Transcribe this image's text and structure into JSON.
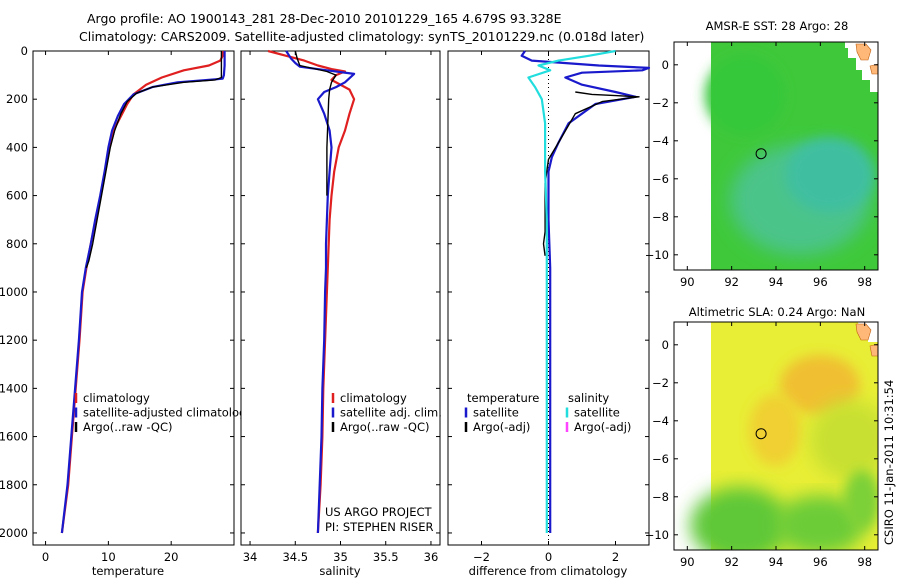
{
  "header": {
    "line1": "Argo profile: AO 1900143_281 28-Dec-2010 20101229_165 4.679S 93.328E",
    "line2": "Climatology: CARS2009. Satellite-adjusted climatology: synTS_20101229.nc (0.018d later)"
  },
  "side_label": "CSIRO 11-Jan-2011 10:31:54",
  "chart_data": [
    {
      "id": "temperature-panel",
      "type": "line",
      "xlabel": "temperature",
      "ylabel": "",
      "xlim": [
        -2,
        30
      ],
      "ylim": [
        2050,
        0
      ],
      "x_ticks": [
        0,
        10,
        20
      ],
      "y_ticks": [
        0,
        200,
        400,
        600,
        800,
        1000,
        1200,
        1400,
        1600,
        1800,
        2000
      ],
      "legend": [
        "climatology",
        "satellite-adjusted climatology",
        "Argo(..raw -QC)"
      ],
      "series": [
        {
          "name": "climatology",
          "color": "#e02020",
          "points": [
            [
              28.3,
              0
            ],
            [
              28.2,
              20
            ],
            [
              27.8,
              40
            ],
            [
              26,
              60
            ],
            [
              22,
              80
            ],
            [
              18.5,
              110
            ],
            [
              16,
              140
            ],
            [
              14,
              180
            ],
            [
              13,
              220
            ],
            [
              12.2,
              260
            ],
            [
              11,
              320
            ],
            [
              10.2,
              400
            ],
            [
              9.5,
              500
            ],
            [
              8.8,
              600
            ],
            [
              8,
              700
            ],
            [
              7.2,
              800
            ],
            [
              6.5,
              900
            ],
            [
              5.9,
              1000
            ],
            [
              5.4,
              1200
            ],
            [
              4.8,
              1400
            ],
            [
              4.2,
              1600
            ],
            [
              3.6,
              1800
            ],
            [
              2.6,
              2000
            ]
          ]
        },
        {
          "name": "satellite-adjusted climatology",
          "color": "#1a1acc",
          "points": [
            [
              28.5,
              0
            ],
            [
              28.5,
              60
            ],
            [
              28.4,
              100
            ],
            [
              28.2,
              115
            ],
            [
              26,
              120
            ],
            [
              21,
              130
            ],
            [
              17,
              150
            ],
            [
              14,
              180
            ],
            [
              12.5,
              220
            ],
            [
              11.5,
              270
            ],
            [
              10.6,
              330
            ],
            [
              10,
              400
            ],
            [
              9.4,
              500
            ],
            [
              8.7,
              600
            ],
            [
              7.9,
              700
            ],
            [
              7.2,
              800
            ],
            [
              6.4,
              900
            ],
            [
              5.8,
              1000
            ],
            [
              5.3,
              1200
            ],
            [
              4.7,
              1400
            ],
            [
              4.1,
              1600
            ],
            [
              3.5,
              1800
            ],
            [
              2.6,
              2000
            ]
          ]
        },
        {
          "name": "Argo(..raw -QC)",
          "color": "#000000",
          "points": [
            [
              28,
              0
            ],
            [
              28,
              110
            ],
            [
              27,
              120
            ],
            [
              22,
              130
            ],
            [
              17,
              150
            ],
            [
              14.5,
              175
            ],
            [
              13,
              210
            ],
            [
              12,
              260
            ],
            [
              11,
              330
            ],
            [
              10.3,
              400
            ],
            [
              9.6,
              500
            ],
            [
              8.9,
              600
            ],
            [
              8.2,
              700
            ],
            [
              7.5,
              800
            ],
            [
              6.9,
              870
            ],
            [
              6.5,
              900
            ]
          ]
        }
      ]
    },
    {
      "id": "salinity-panel",
      "type": "line",
      "xlabel": "salinity",
      "xlim": [
        33.9,
        36.1
      ],
      "ylim": [
        2050,
        0
      ],
      "x_ticks": [
        34,
        34.5,
        35,
        35.5,
        36
      ],
      "legend": [
        "climatology",
        "satellite adj. clim.",
        "Argo(..raw -QC)"
      ],
      "annotation": [
        "US ARGO PROJECT",
        "PI: STEPHEN RISER"
      ],
      "series": [
        {
          "name": "climatology",
          "color": "#e02020",
          "points": [
            [
              34.2,
              0
            ],
            [
              34.4,
              20
            ],
            [
              34.6,
              40
            ],
            [
              34.75,
              60
            ],
            [
              34.9,
              75
            ],
            [
              35.05,
              85
            ],
            [
              34.95,
              100
            ],
            [
              34.9,
              120
            ],
            [
              35.1,
              160
            ],
            [
              35.15,
              200
            ],
            [
              35.1,
              260
            ],
            [
              35.05,
              330
            ],
            [
              34.98,
              400
            ],
            [
              34.93,
              500
            ],
            [
              34.9,
              600
            ],
            [
              34.88,
              700
            ],
            [
              34.87,
              800
            ],
            [
              34.86,
              900
            ],
            [
              34.85,
              1000
            ],
            [
              34.83,
              1200
            ],
            [
              34.81,
              1400
            ],
            [
              34.8,
              1600
            ],
            [
              34.78,
              1800
            ],
            [
              34.75,
              2000
            ]
          ]
        },
        {
          "name": "satellite adj. clim.",
          "color": "#1a1acc",
          "points": [
            [
              34.4,
              0
            ],
            [
              34.45,
              30
            ],
            [
              34.5,
              50
            ],
            [
              34.55,
              65
            ],
            [
              34.85,
              80
            ],
            [
              35.15,
              95
            ],
            [
              35.05,
              130
            ],
            [
              34.95,
              150
            ],
            [
              34.82,
              170
            ],
            [
              34.75,
              200
            ],
            [
              34.82,
              260
            ],
            [
              34.88,
              330
            ],
            [
              34.9,
              400
            ],
            [
              34.88,
              500
            ],
            [
              34.86,
              600
            ],
            [
              34.85,
              700
            ],
            [
              34.84,
              800
            ],
            [
              34.84,
              900
            ],
            [
              34.83,
              1000
            ],
            [
              34.82,
              1200
            ],
            [
              34.8,
              1400
            ],
            [
              34.79,
              1600
            ],
            [
              34.77,
              1800
            ],
            [
              34.75,
              2000
            ]
          ]
        },
        {
          "name": "Argo(..raw -QC)",
          "color": "#000000",
          "points": [
            [
              34.5,
              0
            ],
            [
              34.52,
              30
            ],
            [
              34.55,
              60
            ],
            [
              34.85,
              85
            ],
            [
              34.95,
              100
            ],
            [
              34.9,
              130
            ],
            [
              34.88,
              160
            ],
            [
              34.87,
              200
            ],
            [
              34.86,
              300
            ],
            [
              34.85,
              400
            ],
            [
              34.85,
              600
            ]
          ]
        }
      ]
    },
    {
      "id": "difference-panel",
      "type": "line",
      "xlabel": "difference from climatology",
      "xlim": [
        -3,
        3
      ],
      "ylim": [
        2050,
        0
      ],
      "x_ticks": [
        -2,
        0,
        2
      ],
      "legend": [
        "temperature",
        "satellite",
        "Argo(-adj)",
        "salinity",
        "satellite",
        "Argo(-adj)"
      ],
      "series": [
        {
          "name": "temperature satellite",
          "color": "#1a1acc",
          "points": [
            [
              -0.7,
              0
            ],
            [
              -0.8,
              20
            ],
            [
              -0.5,
              40
            ],
            [
              1.5,
              60
            ],
            [
              3,
              70
            ],
            [
              2.8,
              80
            ],
            [
              1,
              90
            ],
            [
              0.5,
              110
            ],
            [
              1,
              140
            ],
            [
              2,
              170
            ],
            [
              2.6,
              190
            ],
            [
              1.4,
              220
            ],
            [
              0.6,
              300
            ],
            [
              0.3,
              380
            ],
            [
              0.1,
              440
            ],
            [
              0,
              500
            ],
            [
              0,
              600
            ],
            [
              0,
              700
            ],
            [
              0.05,
              900
            ],
            [
              0.05,
              1100
            ],
            [
              0.05,
              1300
            ],
            [
              0.05,
              1500
            ],
            [
              0.05,
              1700
            ],
            [
              0.05,
              1900
            ],
            [
              0.05,
              2000
            ]
          ]
        },
        {
          "name": "temperature Argo(-adj)",
          "color": "#000000",
          "points": [
            [
              0.8,
              170
            ],
            [
              1.3,
              180
            ],
            [
              2,
              185
            ],
            [
              2.7,
              190
            ],
            [
              1.6,
              210
            ],
            [
              0.8,
              260
            ],
            [
              0.3,
              380
            ],
            [
              0,
              450
            ],
            [
              -0.1,
              550
            ],
            [
              -0.1,
              650
            ],
            [
              -0.1,
              750
            ],
            [
              -0.15,
              800
            ],
            [
              -0.1,
              850
            ]
          ]
        },
        {
          "name": "salinity satellite",
          "color": "#22dddd",
          "points": [
            [
              2,
              0
            ],
            [
              1.2,
              20
            ],
            [
              0.3,
              40
            ],
            [
              -0.3,
              60
            ],
            [
              0.05,
              80
            ],
            [
              -0.6,
              110
            ],
            [
              -0.4,
              150
            ],
            [
              -0.2,
              200
            ],
            [
              -0.1,
              300
            ],
            [
              -0.1,
              500
            ],
            [
              -0.05,
              700
            ],
            [
              -0.05,
              900
            ],
            [
              -0.05,
              1100
            ],
            [
              -0.05,
              1300
            ],
            [
              -0.05,
              1500
            ],
            [
              -0.05,
              1700
            ],
            [
              -0.05,
              1900
            ],
            [
              -0.05,
              2000
            ]
          ]
        },
        {
          "name": "salinity Argo(-adj)",
          "color": "#ff44ff",
          "points": []
        }
      ]
    },
    {
      "id": "sst-map",
      "type": "heatmap",
      "title": "AMSR-E SST: 28 Argo: 28",
      "xlim": [
        89.4,
        98.6
      ],
      "ylim": [
        -10.8,
        1.2
      ],
      "x_ticks": [
        90,
        92,
        94,
        96,
        98
      ],
      "y_ticks": [
        0,
        -2,
        -4,
        -6,
        -8,
        -10
      ],
      "float_position": [
        93.328,
        -4.679
      ]
    },
    {
      "id": "sla-map",
      "type": "heatmap",
      "title": "Altimetric SLA: 0.24 Argo: NaN",
      "xlim": [
        89.4,
        98.6
      ],
      "ylim": [
        -10.8,
        1.2
      ],
      "x_ticks": [
        90,
        92,
        94,
        96,
        98
      ],
      "y_ticks": [
        0,
        -2,
        -4,
        -6,
        -8,
        -10
      ],
      "float_position": [
        93.328,
        -4.679
      ]
    }
  ]
}
